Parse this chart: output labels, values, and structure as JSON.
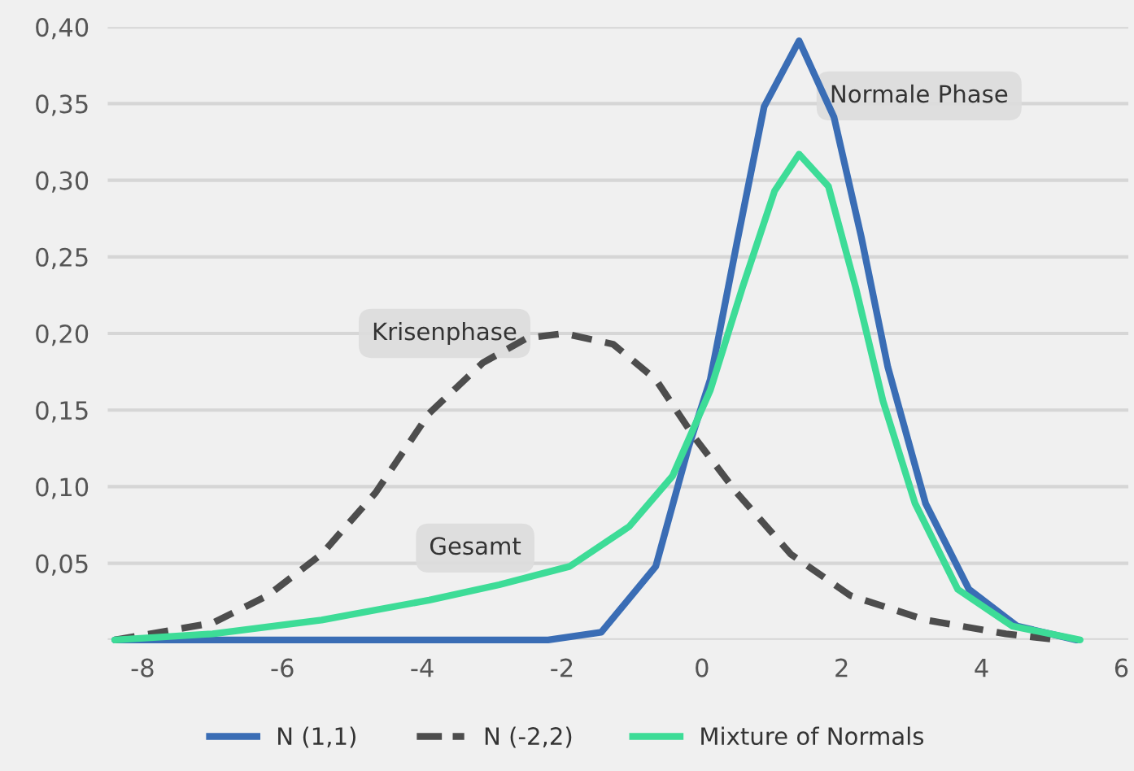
{
  "chart_data": {
    "type": "line",
    "xlim": [
      -8.5,
      6.1
    ],
    "ylim": [
      0,
      0.4
    ],
    "xticks": [
      -8,
      -6,
      -4,
      -2,
      0,
      2,
      4,
      6
    ],
    "yticks": [
      {
        "value": 0,
        "label": null
      },
      {
        "value": 0.05,
        "label": "0,05"
      },
      {
        "value": 0.1,
        "label": "0,10"
      },
      {
        "value": 0.15,
        "label": "0,15"
      },
      {
        "value": 0.2,
        "label": "0,20"
      },
      {
        "value": 0.25,
        "label": "0,25"
      },
      {
        "value": 0.3,
        "label": "0,30"
      },
      {
        "value": 0.35,
        "label": "0,35"
      },
      {
        "value": 0.4,
        "label": "0,40"
      }
    ],
    "grid": "y",
    "legend": "bottom",
    "marker": "none",
    "series": [
      {
        "name": "N (1,1)",
        "color": "#3a6db5",
        "line_style": "solid",
        "x": [
          -8.4,
          -2.2,
          -1.44,
          -0.66,
          -0.19,
          0.12,
          0.5,
          0.89,
          1.39,
          1.89,
          2.28,
          2.66,
          3.2,
          3.82,
          4.51,
          5.36
        ],
        "values": [
          0,
          0,
          0.005,
          0.048,
          0.126,
          0.17,
          0.259,
          0.348,
          0.391,
          0.341,
          0.263,
          0.178,
          0.089,
          0.033,
          0.009,
          0
        ]
      },
      {
        "name": "N (-2,2)",
        "color": "#4d4d4d",
        "line_style": "dashed",
        "x": [
          -8.4,
          -7.0,
          -6.21,
          -5.44,
          -4.67,
          -3.9,
          -3.13,
          -2.5,
          -1.97,
          -1.27,
          -0.66,
          -0.12,
          0.5,
          1.27,
          2.12,
          3.2,
          4.35,
          5.1
        ],
        "values": [
          0,
          0.011,
          0.029,
          0.056,
          0.096,
          0.148,
          0.181,
          0.197,
          0.2,
          0.193,
          0.17,
          0.133,
          0.096,
          0.056,
          0.029,
          0.013,
          0.004,
          0
        ]
      },
      {
        "name": "Mixture of Normals",
        "color": "#3ddc97",
        "line_style": "solid",
        "x": [
          -8.4,
          -7.0,
          -5.44,
          -3.9,
          -2.9,
          -1.89,
          -1.04,
          -0.42,
          0.12,
          0.58,
          1.04,
          1.39,
          1.81,
          2.2,
          2.59,
          3.05,
          3.66,
          4.44,
          5.41
        ],
        "values": [
          0,
          0.004,
          0.013,
          0.026,
          0.036,
          0.048,
          0.074,
          0.107,
          0.163,
          0.23,
          0.293,
          0.317,
          0.296,
          0.23,
          0.156,
          0.089,
          0.033,
          0.009,
          0
        ]
      }
    ],
    "annotations": [
      "Krisenphase",
      "Gesamt",
      "Normale Phase"
    ]
  }
}
